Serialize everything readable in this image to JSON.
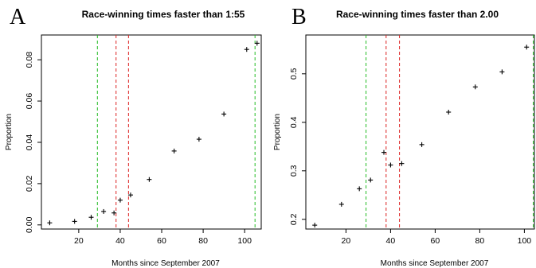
{
  "chart_data": [
    {
      "panel": "A",
      "type": "scatter",
      "title": "Race-winning times faster than 1:55",
      "xlabel": "Months since September 2007",
      "ylabel": "Proportion",
      "xlim": [
        2,
        108
      ],
      "ylim": [
        -0.002,
        0.092
      ],
      "x_ticks": [
        20,
        40,
        60,
        80,
        100
      ],
      "y_ticks": [
        0.0,
        0.02,
        0.04,
        0.06,
        0.08
      ],
      "y_tick_labels": [
        "0.00",
        "0.02",
        "0.04",
        "0.06",
        "0.08"
      ],
      "points": [
        {
          "x": 6,
          "y": 0.001
        },
        {
          "x": 18,
          "y": 0.0017
        },
        {
          "x": 26,
          "y": 0.0037
        },
        {
          "x": 32,
          "y": 0.0065
        },
        {
          "x": 37,
          "y": 0.0058
        },
        {
          "x": 40,
          "y": 0.012
        },
        {
          "x": 45,
          "y": 0.0145
        },
        {
          "x": 54,
          "y": 0.022
        },
        {
          "x": 66,
          "y": 0.0358
        },
        {
          "x": 78,
          "y": 0.0415
        },
        {
          "x": 90,
          "y": 0.0537
        },
        {
          "x": 101,
          "y": 0.085
        },
        {
          "x": 106,
          "y": 0.088
        }
      ],
      "vlines": [
        {
          "x": 29,
          "color": "#22bb22"
        },
        {
          "x": 38,
          "color": "#dd2222"
        },
        {
          "x": 44,
          "color": "#dd2222"
        },
        {
          "x": 105,
          "color": "#22bb22"
        }
      ],
      "grid": false
    },
    {
      "panel": "B",
      "type": "scatter",
      "title": "Race-winning times faster than 2.00",
      "xlabel": "Months since September 2007",
      "ylabel": "Proportion",
      "xlim": [
        2,
        104.5
      ],
      "ylim": [
        0.18,
        0.58
      ],
      "x_ticks": [
        20,
        40,
        60,
        80,
        100
      ],
      "y_ticks": [
        0.2,
        0.3,
        0.4,
        0.5
      ],
      "y_tick_labels": [
        "0.2",
        "0.3",
        "0.4",
        "0.5"
      ],
      "points": [
        {
          "x": 6,
          "y": 0.188
        },
        {
          "x": 18,
          "y": 0.231
        },
        {
          "x": 26,
          "y": 0.263
        },
        {
          "x": 31,
          "y": 0.281
        },
        {
          "x": 37,
          "y": 0.338
        },
        {
          "x": 40,
          "y": 0.312
        },
        {
          "x": 45,
          "y": 0.315
        },
        {
          "x": 54,
          "y": 0.354
        },
        {
          "x": 66,
          "y": 0.421
        },
        {
          "x": 78,
          "y": 0.473
        },
        {
          "x": 90,
          "y": 0.504
        },
        {
          "x": 101,
          "y": 0.555
        }
      ],
      "vlines": [
        {
          "x": 29,
          "color": "#22bb22"
        },
        {
          "x": 38,
          "color": "#dd2222"
        },
        {
          "x": 44,
          "color": "#dd2222"
        },
        {
          "x": 104,
          "color": "#22bb22"
        }
      ],
      "grid": false
    }
  ]
}
